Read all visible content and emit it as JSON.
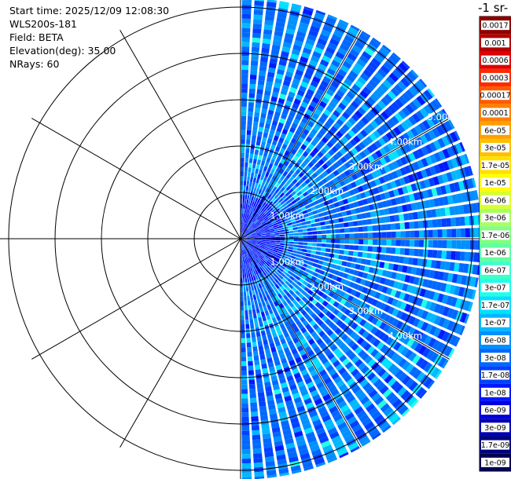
{
  "info": {
    "start_time": "Start time: 2025/12/09 12:08:30",
    "instrument": "WLS200s-181",
    "field": "Field: BETA",
    "elevation": "Elevation(deg): 35.00",
    "nrays": "NRays: 60"
  },
  "colorbar": {
    "title": "-1 sr-",
    "labels": [
      "0.0017",
      "0.001",
      "0.0006",
      "0.0003",
      "0.00017",
      "0.0001",
      "6e-05",
      "3e-05",
      "1.7e-05",
      "1e-05",
      "6e-06",
      "3e-06",
      "1.7e-06",
      "1e-06",
      "6e-07",
      "3e-07",
      "1.7e-07",
      "1e-07",
      "6e-08",
      "3e-08",
      "1.7e-08",
      "1e-08",
      "6e-09",
      "3e-09",
      "1.7e-09",
      "1e-09"
    ],
    "colors": [
      "#8b0000",
      "#b20000",
      "#e00000",
      "#ff2a00",
      "#ff5a00",
      "#ff8000",
      "#ffa000",
      "#ffc000",
      "#ffe000",
      "#ffff00",
      "#d8ff30",
      "#a8ff60",
      "#80ff80",
      "#60ffa0",
      "#40ffc8",
      "#20ffe8",
      "#00e0ff",
      "#00b8ff",
      "#0090ff",
      "#0068ff",
      "#0040ff",
      "#0018ff",
      "#0000e0",
      "#0000b0",
      "#000080",
      "#000050"
    ]
  },
  "chart_data": {
    "type": "polar-ppi",
    "field": "BETA",
    "elevation_deg": 35.0,
    "n_rays": 60,
    "azimuth_span_deg": [
      0,
      180
    ],
    "range_rings_km": [
      1.0,
      2.0,
      3.0,
      4.0,
      5.0
    ],
    "range_labels_top": [
      "1.00km",
      "2.00km",
      "3.00km",
      "4.00km",
      "5.00km"
    ],
    "range_labels_bottom": [
      "1.00km",
      "2.00km",
      "3.00km",
      "4.00km"
    ],
    "max_range_km": 5.2,
    "spoke_angles_deg": [
      0,
      30,
      60,
      90,
      120,
      150,
      180,
      210,
      240,
      270,
      300,
      330
    ],
    "value_range": [
      1e-09,
      0.0017
    ],
    "dominant_value": 3e-08,
    "grid": true
  }
}
